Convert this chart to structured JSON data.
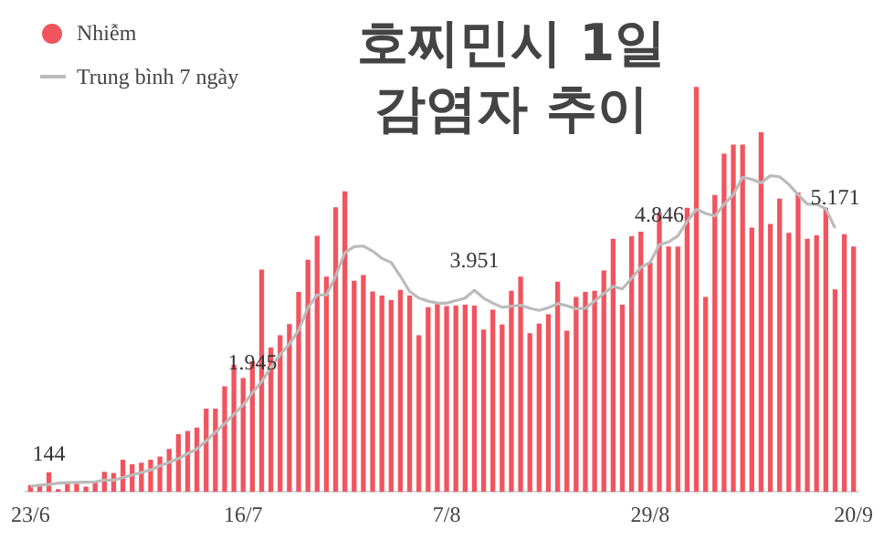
{
  "chart_data": {
    "type": "bar",
    "title": "호찌민시 1일\n감염자 추이",
    "categories": [
      "23/6",
      null,
      null,
      null,
      null,
      null,
      null,
      null,
      null,
      null,
      null,
      null,
      null,
      null,
      null,
      null,
      null,
      null,
      null,
      null,
      null,
      null,
      null,
      "16/7",
      null,
      null,
      null,
      null,
      null,
      null,
      null,
      null,
      null,
      null,
      null,
      null,
      null,
      null,
      null,
      null,
      null,
      null,
      null,
      null,
      null,
      "7/8",
      null,
      null,
      null,
      null,
      null,
      null,
      null,
      null,
      null,
      null,
      null,
      null,
      null,
      null,
      null,
      null,
      null,
      null,
      null,
      null,
      null,
      "29/8",
      null,
      null,
      null,
      null,
      null,
      null,
      null,
      null,
      null,
      null,
      null,
      null,
      null,
      null,
      null,
      null,
      null,
      null,
      null,
      null,
      null,
      "20/9"
    ],
    "series": [
      {
        "name": "Nhiễm",
        "color": "#f0555f",
        "values": [
          120,
          100,
          370,
          40,
          150,
          150,
          90,
          170,
          380,
          360,
          620,
          530,
          560,
          620,
          680,
          830,
          1120,
          1180,
          1250,
          1620,
          1620,
          2060,
          2480,
          2220,
          2550,
          4350,
          2820,
          3060,
          3280,
          3910,
          4540,
          5010,
          4210,
          5570,
          5880,
          4130,
          4240,
          3920,
          3840,
          3750,
          3950,
          3840,
          3060,
          3610,
          3700,
          3630,
          3640,
          3660,
          3640,
          3170,
          3560,
          3270,
          3930,
          4210,
          3100,
          3290,
          3470,
          4110,
          3150,
          3810,
          3910,
          3930,
          4330,
          4950,
          3660,
          5000,
          5090,
          4480,
          5460,
          4800,
          4800,
          5560,
          7930,
          3810,
          5810,
          6620,
          6800,
          6800,
          5170,
          7040,
          5240,
          5740,
          5070,
          5860,
          4950,
          5020,
          5560,
          3960,
          5040,
          4800
        ]
      },
      {
        "type": "line",
        "name": "Trung bình 7 ngày",
        "color": "#bbbbbb",
        "values": [
          110,
          130,
          144,
          170,
          180,
          185,
          190,
          195,
          230,
          230,
          280,
          330,
          380,
          430,
          510,
          580,
          650,
          750,
          840,
          1000,
          1170,
          1340,
          1520,
          1700,
          1945,
          2160,
          2440,
          2690,
          2900,
          3170,
          3610,
          3860,
          3860,
          4230,
          4690,
          4810,
          4820,
          4720,
          4580,
          4500,
          4230,
          3930,
          3800,
          3740,
          3700,
          3700,
          3750,
          3800,
          3951,
          3800,
          3700,
          3620,
          3640,
          3660,
          3600,
          3560,
          3610,
          3690,
          3650,
          3590,
          3600,
          3740,
          3890,
          4030,
          3980,
          4190,
          4400,
          4500,
          4846,
          4900,
          5020,
          5300,
          5540,
          5460,
          5410,
          5640,
          5830,
          6170,
          6130,
          6060,
          6200,
          6180,
          6030,
          5830,
          5640,
          5640,
          5550,
          5171,
          null,
          null
        ],
        "value_labels": [
          null,
          null,
          "144",
          null,
          null,
          null,
          null,
          null,
          null,
          null,
          null,
          null,
          null,
          null,
          null,
          null,
          null,
          null,
          null,
          null,
          null,
          null,
          null,
          null,
          "1.945",
          null,
          null,
          null,
          null,
          null,
          null,
          null,
          null,
          null,
          null,
          null,
          null,
          null,
          null,
          null,
          null,
          null,
          null,
          null,
          null,
          null,
          null,
          null,
          "3.951",
          null,
          null,
          null,
          null,
          null,
          null,
          null,
          null,
          null,
          null,
          null,
          null,
          null,
          null,
          null,
          null,
          null,
          null,
          null,
          "4.846",
          null,
          null,
          null,
          null,
          null,
          null,
          null,
          null,
          null,
          null,
          null,
          null,
          null,
          null,
          null,
          null,
          null,
          null,
          "5.171",
          null,
          null
        ]
      }
    ],
    "tick_labels": "x",
    "grid": false,
    "legend": "top left",
    "marker": "none"
  }
}
